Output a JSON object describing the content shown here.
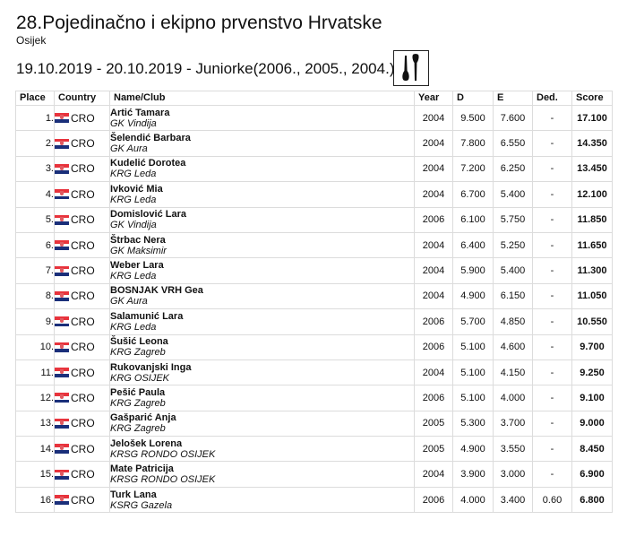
{
  "header": {
    "title": "28.Pojedinačno i ekipno prvenstvo Hrvatske",
    "city": "Osijek",
    "subtitle": "19.10.2019 - 20.10.2019 - Juniorke(2006., 2005., 2004.)",
    "apparatus_icon": "clubs-icon"
  },
  "colors": {
    "flag_red": "#e8333c",
    "flag_white": "#ffffff",
    "flag_blue": "#1a2f7a",
    "grid": "#dcdcdc",
    "text": "#111111"
  },
  "table": {
    "columns": [
      "Place",
      "Country",
      "Name/Club",
      "Year",
      "D",
      "E",
      "Ded.",
      "Score"
    ],
    "rows": [
      {
        "place": "1.",
        "country": "CRO",
        "name": "Artić Tamara",
        "club": "GK Vindija",
        "year": "2004",
        "d": "9.500",
        "e": "7.600",
        "ded": "-",
        "score": "17.100"
      },
      {
        "place": "2.",
        "country": "CRO",
        "name": "Šelendić Barbara",
        "club": "GK Aura",
        "year": "2004",
        "d": "7.800",
        "e": "6.550",
        "ded": "-",
        "score": "14.350"
      },
      {
        "place": "3.",
        "country": "CRO",
        "name": "Kudelić Dorotea",
        "club": "KRG Leda",
        "year": "2004",
        "d": "7.200",
        "e": "6.250",
        "ded": "-",
        "score": "13.450"
      },
      {
        "place": "4.",
        "country": "CRO",
        "name": "Ivković Mia",
        "club": "KRG Leda",
        "year": "2004",
        "d": "6.700",
        "e": "5.400",
        "ded": "-",
        "score": "12.100"
      },
      {
        "place": "5.",
        "country": "CRO",
        "name": "Domislović Lara",
        "club": "GK Vindija",
        "year": "2006",
        "d": "6.100",
        "e": "5.750",
        "ded": "-",
        "score": "11.850"
      },
      {
        "place": "6.",
        "country": "CRO",
        "name": "Štrbac Nera",
        "club": "GK Maksimir",
        "year": "2004",
        "d": "6.400",
        "e": "5.250",
        "ded": "-",
        "score": "11.650"
      },
      {
        "place": "7.",
        "country": "CRO",
        "name": "Weber Lara",
        "club": "KRG Leda",
        "year": "2004",
        "d": "5.900",
        "e": "5.400",
        "ded": "-",
        "score": "11.300"
      },
      {
        "place": "8.",
        "country": "CRO",
        "name": "BOSNJAK VRH Gea",
        "club": "GK Aura",
        "year": "2004",
        "d": "4.900",
        "e": "6.150",
        "ded": "-",
        "score": "11.050"
      },
      {
        "place": "9.",
        "country": "CRO",
        "name": "Salamunić Lara",
        "club": "KRG Leda",
        "year": "2006",
        "d": "5.700",
        "e": "4.850",
        "ded": "-",
        "score": "10.550"
      },
      {
        "place": "10.",
        "country": "CRO",
        "name": "Šušić Leona",
        "club": "KRG Zagreb",
        "year": "2006",
        "d": "5.100",
        "e": "4.600",
        "ded": "-",
        "score": "9.700"
      },
      {
        "place": "11.",
        "country": "CRO",
        "name": "Rukovanjski Inga",
        "club": "KRG OSIJEK",
        "year": "2004",
        "d": "5.100",
        "e": "4.150",
        "ded": "-",
        "score": "9.250"
      },
      {
        "place": "12.",
        "country": "CRO",
        "name": "Pešić Paula",
        "club": "KRG Zagreb",
        "year": "2006",
        "d": "5.100",
        "e": "4.000",
        "ded": "-",
        "score": "9.100"
      },
      {
        "place": "13.",
        "country": "CRO",
        "name": "Gašparić Anja",
        "club": "KRG Zagreb",
        "year": "2005",
        "d": "5.300",
        "e": "3.700",
        "ded": "-",
        "score": "9.000"
      },
      {
        "place": "14.",
        "country": "CRO",
        "name": "Jelošek Lorena",
        "club": "KRSG RONDO OSIJEK",
        "year": "2005",
        "d": "4.900",
        "e": "3.550",
        "ded": "-",
        "score": "8.450"
      },
      {
        "place": "15.",
        "country": "CRO",
        "name": "Mate Patricija",
        "club": "KRSG RONDO OSIJEK",
        "year": "2004",
        "d": "3.900",
        "e": "3.000",
        "ded": "-",
        "score": "6.900"
      },
      {
        "place": "16.",
        "country": "CRO",
        "name": "Turk Lana",
        "club": "KSRG Gazela",
        "year": "2006",
        "d": "4.000",
        "e": "3.400",
        "ded": "0.60",
        "score": "6.800"
      }
    ]
  }
}
